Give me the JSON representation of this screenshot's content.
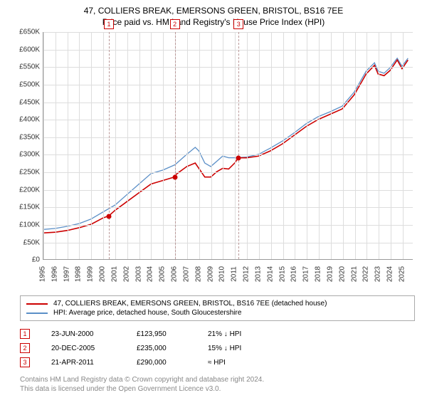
{
  "title_line1": "47, COLLIERS BREAK, EMERSONS GREEN, BRISTOL, BS16 7EE",
  "title_line2": "Price paid vs. HM Land Registry's House Price Index (HPI)",
  "chart": {
    "type": "line",
    "ylim": [
      0,
      650000
    ],
    "ytick_step": 50000,
    "y_labels": [
      "£0",
      "£50K",
      "£100K",
      "£150K",
      "£200K",
      "£250K",
      "£300K",
      "£350K",
      "£400K",
      "£450K",
      "£500K",
      "£550K",
      "£600K",
      "£650K"
    ],
    "xlim": [
      1995,
      2025.9
    ],
    "x_labels": [
      "1995",
      "1996",
      "1997",
      "1998",
      "1999",
      "2000",
      "2001",
      "2002",
      "2003",
      "2004",
      "2005",
      "2006",
      "2007",
      "2008",
      "2009",
      "2010",
      "2011",
      "2012",
      "2013",
      "2014",
      "2015",
      "2016",
      "2017",
      "2018",
      "2019",
      "2020",
      "2021",
      "2022",
      "2023",
      "2024",
      "2025"
    ],
    "grid_color": "#dddddd",
    "background_color": "#ffffff",
    "property_color": "#cc0000",
    "hpi_color": "#5b8fc7",
    "marker_color": "#cc0000",
    "vline_color": "#bb9999",
    "property_series": [
      [
        1995,
        75000
      ],
      [
        1996,
        77000
      ],
      [
        1997,
        82000
      ],
      [
        1998,
        90000
      ],
      [
        1999,
        100000
      ],
      [
        2000,
        118000
      ],
      [
        2000.47,
        123950
      ],
      [
        2001,
        140000
      ],
      [
        2002,
        165000
      ],
      [
        2003,
        190000
      ],
      [
        2004,
        215000
      ],
      [
        2005,
        225000
      ],
      [
        2005.97,
        235000
      ],
      [
        2006,
        240000
      ],
      [
        2007,
        265000
      ],
      [
        2007.7,
        275000
      ],
      [
        2008,
        260000
      ],
      [
        2008.5,
        235000
      ],
      [
        2009,
        235000
      ],
      [
        2009.5,
        250000
      ],
      [
        2010,
        260000
      ],
      [
        2010.5,
        258000
      ],
      [
        2011,
        275000
      ],
      [
        2011.3,
        290000
      ],
      [
        2012,
        290000
      ],
      [
        2013,
        295000
      ],
      [
        2014,
        310000
      ],
      [
        2015,
        330000
      ],
      [
        2016,
        355000
      ],
      [
        2017,
        380000
      ],
      [
        2018,
        400000
      ],
      [
        2019,
        415000
      ],
      [
        2020,
        430000
      ],
      [
        2021,
        470000
      ],
      [
        2022,
        530000
      ],
      [
        2022.7,
        555000
      ],
      [
        2023,
        530000
      ],
      [
        2023.5,
        525000
      ],
      [
        2024,
        540000
      ],
      [
        2024.6,
        570000
      ],
      [
        2025,
        545000
      ],
      [
        2025.5,
        570000
      ]
    ],
    "hpi_series": [
      [
        1995,
        85000
      ],
      [
        1996,
        88000
      ],
      [
        1997,
        94000
      ],
      [
        1998,
        102000
      ],
      [
        1999,
        115000
      ],
      [
        2000,
        135000
      ],
      [
        2001,
        155000
      ],
      [
        2002,
        185000
      ],
      [
        2003,
        215000
      ],
      [
        2004,
        245000
      ],
      [
        2005,
        255000
      ],
      [
        2006,
        270000
      ],
      [
        2007,
        300000
      ],
      [
        2007.7,
        320000
      ],
      [
        2008,
        310000
      ],
      [
        2008.5,
        275000
      ],
      [
        2009,
        265000
      ],
      [
        2009.5,
        280000
      ],
      [
        2010,
        295000
      ],
      [
        2010.5,
        290000
      ],
      [
        2011,
        290000
      ],
      [
        2012,
        292000
      ],
      [
        2013,
        300000
      ],
      [
        2014,
        318000
      ],
      [
        2015,
        338000
      ],
      [
        2016,
        362000
      ],
      [
        2017,
        388000
      ],
      [
        2018,
        408000
      ],
      [
        2019,
        422000
      ],
      [
        2020,
        438000
      ],
      [
        2021,
        478000
      ],
      [
        2022,
        538000
      ],
      [
        2022.7,
        562000
      ],
      [
        2023,
        538000
      ],
      [
        2023.5,
        532000
      ],
      [
        2024,
        548000
      ],
      [
        2024.6,
        575000
      ],
      [
        2025,
        552000
      ],
      [
        2025.5,
        575000
      ]
    ],
    "markers": [
      {
        "n": "1",
        "x": 2000.47,
        "y": 123950
      },
      {
        "n": "2",
        "x": 2005.97,
        "y": 235000
      },
      {
        "n": "3",
        "x": 2011.3,
        "y": 290000
      }
    ]
  },
  "legend": {
    "property": "47, COLLIERS BREAK, EMERSONS GREEN, BRISTOL, BS16 7EE (detached house)",
    "hpi": "HPI: Average price, detached house, South Gloucestershire"
  },
  "transactions": [
    {
      "n": "1",
      "date": "23-JUN-2000",
      "price": "£123,950",
      "diff": "21% ↓ HPI"
    },
    {
      "n": "2",
      "date": "20-DEC-2005",
      "price": "£235,000",
      "diff": "15% ↓ HPI"
    },
    {
      "n": "3",
      "date": "21-APR-2011",
      "price": "£290,000",
      "diff": "≈ HPI"
    }
  ],
  "footer_line1": "Contains HM Land Registry data © Crown copyright and database right 2024.",
  "footer_line2": "This data is licensed under the Open Government Licence v3.0."
}
